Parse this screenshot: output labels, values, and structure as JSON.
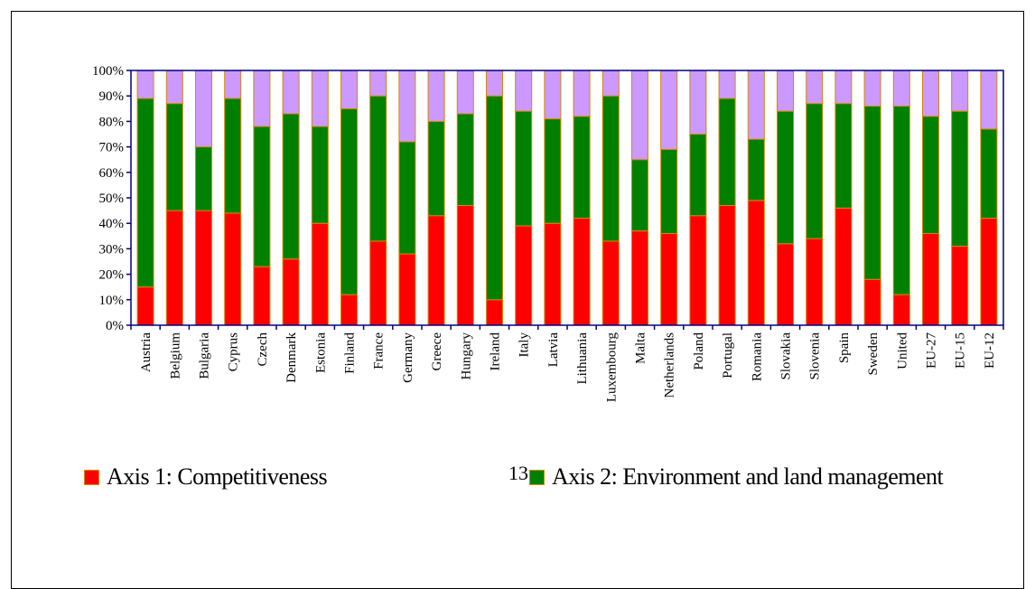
{
  "chart_data": {
    "type": "bar",
    "stacked": true,
    "categories": [
      "Austria",
      "Belgium",
      "Bulgaria",
      "Cyprus",
      "Czech",
      "Denmark",
      "Estonia",
      "Finland",
      "France",
      "Germany",
      "Greece",
      "Hungary",
      "Ireland",
      "Italy",
      "Latvia",
      "Lithuania",
      "Luxembourg",
      "Malta",
      "Netherlands",
      "Poland",
      "Portugal",
      "Romania",
      "Slovakia",
      "Slovenia",
      "Spain",
      "Sweden",
      "United",
      "EU-27",
      "EU-15",
      "EU-12"
    ],
    "series": [
      {
        "name": "Axis 1: Competitiveness",
        "color": "#ff0000",
        "values": [
          15,
          45,
          45,
          44,
          23,
          26,
          40,
          12,
          33,
          28,
          43,
          47,
          10,
          39,
          40,
          42,
          33,
          37,
          36,
          43,
          47,
          49,
          32,
          34,
          46,
          18,
          12,
          36,
          31,
          42
        ]
      },
      {
        "name": "Axis 2: Environment and land management",
        "color": "#008000",
        "values": [
          74,
          42,
          25,
          45,
          55,
          57,
          38,
          73,
          57,
          44,
          37,
          36,
          80,
          45,
          41,
          40,
          57,
          28,
          33,
          32,
          42,
          24,
          52,
          53,
          41,
          68,
          74,
          46,
          53,
          35
        ]
      },
      {
        "color": "#cc99ff",
        "values": [
          11,
          13,
          30,
          11,
          22,
          17,
          22,
          15,
          10,
          28,
          20,
          17,
          10,
          16,
          19,
          18,
          10,
          35,
          31,
          25,
          11,
          27,
          16,
          13,
          13,
          14,
          14,
          18,
          16,
          23
        ]
      }
    ],
    "y_ticks": [
      "0%",
      "10%",
      "20%",
      "30%",
      "40%",
      "50%",
      "60%",
      "70%",
      "80%",
      "90%",
      "100%"
    ],
    "ylim": [
      0,
      100
    ],
    "grid": false,
    "legend_position": "bottom"
  },
  "page_number": "13",
  "colors": {
    "axis": "#000080",
    "bar_border": "#d48a00"
  }
}
